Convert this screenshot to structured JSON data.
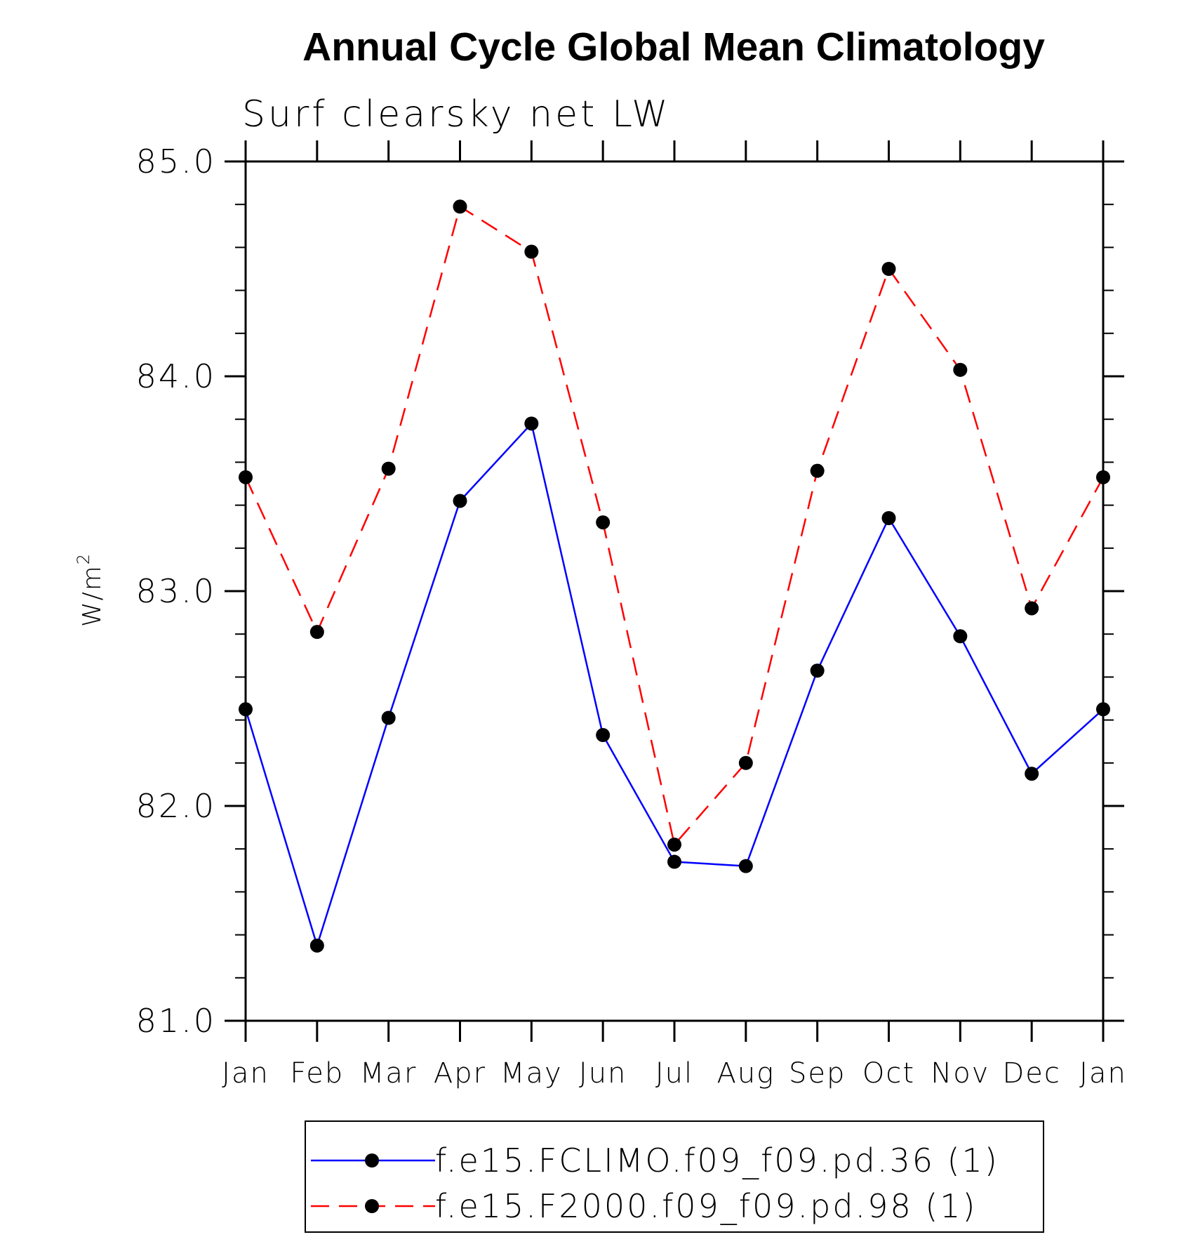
{
  "chart_data": {
    "type": "line",
    "title": "Annual Cycle Global Mean Climatology",
    "subtitle": "Surf clearsky net LW",
    "ylabel": "W/m",
    "ylabel_sup": "2",
    "ylim": [
      81.0,
      85.0
    ],
    "yticks": [
      "85.0",
      "84.0",
      "83.0",
      "82.0",
      "81.0"
    ],
    "x": [
      "Jan",
      "Feb",
      "Mar",
      "Apr",
      "May",
      "Jun",
      "Jul",
      "Aug",
      "Sep",
      "Oct",
      "Nov",
      "Dec",
      "Jan"
    ],
    "grid": false,
    "legend_position": "bottom",
    "series": [
      {
        "name": "f.e15.FCLIMO.f09_f09.pd.36 (1)",
        "color": "#0000ff",
        "dash": "solid",
        "marker_color": "#000000",
        "values": [
          82.45,
          81.35,
          82.41,
          83.42,
          83.78,
          82.33,
          81.74,
          81.72,
          82.63,
          83.34,
          82.79,
          82.15,
          82.45
        ]
      },
      {
        "name": "f.e15.F2000.f09_f09.pd.98 (1)",
        "color": "#ff0000",
        "dash": "dashed",
        "marker_color": "#000000",
        "values": [
          83.53,
          82.81,
          83.57,
          84.79,
          84.58,
          83.32,
          81.82,
          82.2,
          83.56,
          84.5,
          84.03,
          82.92,
          83.53
        ]
      }
    ]
  }
}
